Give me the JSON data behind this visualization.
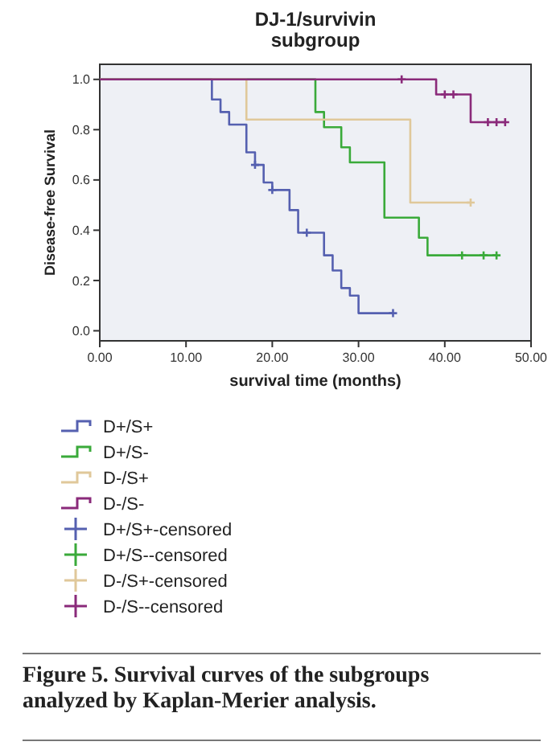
{
  "chart_data": {
    "type": "step",
    "title": "DJ-1/survivin\nsubgroup",
    "xlabel": "survival time (months)",
    "ylabel": "Disease-free Survival",
    "annotations": [
      "Figure 5. Survival curves of the subgroups analyzed by Kaplan-Merier analysis."
    ],
    "xlim": [
      0,
      50
    ],
    "xticks": [
      {
        "value": 0,
        "label": "0.00"
      },
      {
        "value": 10,
        "label": "10.00"
      },
      {
        "value": 20,
        "label": "20.00"
      },
      {
        "value": 30,
        "label": "30.00"
      },
      {
        "value": 40,
        "label": "40.00"
      },
      {
        "value": 50,
        "label": "50.00"
      }
    ],
    "ylim": [
      -0.04,
      1.06
    ],
    "yticks": [
      {
        "value": 0,
        "label": "0.0"
      },
      {
        "value": 0.2,
        "label": "0.2"
      },
      {
        "value": 0.4,
        "label": "0.4"
      },
      {
        "value": 0.6,
        "label": "0.6"
      },
      {
        "value": 0.8,
        "label": "0.8"
      },
      {
        "value": 1,
        "label": "1.0"
      }
    ],
    "legend": "bottom",
    "grid": false,
    "series": [
      {
        "name": "D+/S+",
        "color": "#5560b0",
        "x": [
          0,
          13,
          14,
          15,
          17,
          18,
          19,
          20,
          22,
          23,
          26,
          27,
          28,
          29,
          30,
          34
        ],
        "values": [
          1,
          0.92,
          0.87,
          0.82,
          0.71,
          0.66,
          0.59,
          0.56,
          0.48,
          0.39,
          0.3,
          0.24,
          0.17,
          0.14,
          0.07,
          0.07
        ]
      },
      {
        "name": "D+/S-",
        "color": "#3aaa3a",
        "x": [
          0,
          25,
          26,
          28,
          29,
          33,
          37,
          38,
          46
        ],
        "values": [
          1,
          0.87,
          0.81,
          0.73,
          0.67,
          0.45,
          0.37,
          0.3,
          0.3
        ]
      },
      {
        "name": "D-/S+",
        "color": "#e0c89a",
        "x": [
          0,
          17,
          36,
          43
        ],
        "values": [
          1,
          0.84,
          0.51,
          0.51
        ]
      },
      {
        "name": "D-/S-",
        "color": "#8a2a7a",
        "x": [
          0,
          39,
          43,
          47
        ],
        "values": [
          1,
          0.94,
          0.83,
          0.83
        ]
      },
      {
        "name": "D+/S+-censored",
        "type": "scatter",
        "marker": "cross",
        "color": "#5560b0",
        "x": [
          18,
          20,
          24,
          34
        ],
        "values": [
          0.66,
          0.56,
          0.39,
          0.07
        ]
      },
      {
        "name": "D+/S--censored",
        "type": "scatter",
        "marker": "cross",
        "color": "#3aaa3a",
        "x": [
          42,
          44.5,
          46
        ],
        "values": [
          0.3,
          0.3,
          0.3
        ]
      },
      {
        "name": "D-/S+-censored",
        "type": "scatter",
        "marker": "cross",
        "color": "#e0c89a",
        "x": [
          43
        ],
        "values": [
          0.51
        ]
      },
      {
        "name": "D-/S--censored",
        "type": "scatter",
        "marker": "cross",
        "color": "#8a2a7a",
        "x": [
          35,
          40,
          41,
          45,
          46,
          47
        ],
        "values": [
          1,
          0.94,
          0.94,
          0.83,
          0.83,
          0.83
        ]
      }
    ]
  }
}
